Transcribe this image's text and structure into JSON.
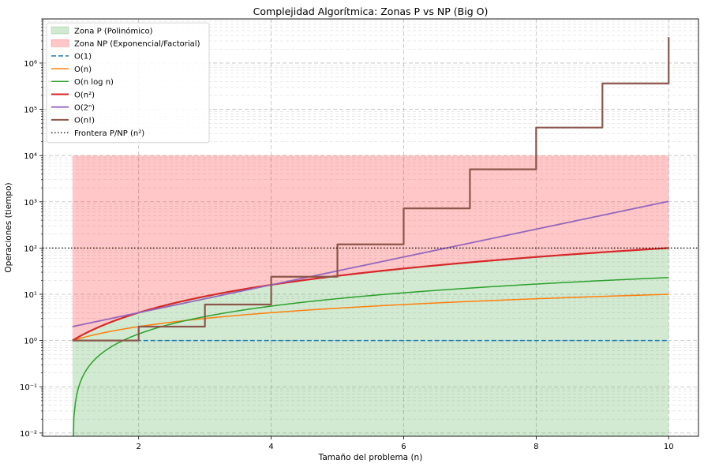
{
  "chart_data": {
    "type": "line",
    "title": "Complejidad Algorítmica: Zonas P vs NP (Big O)",
    "xlabel": "Tamaño del problema (n)",
    "ylabel": "Operaciones (tiempo)",
    "xlim": [
      0.55,
      10.45
    ],
    "ylim": [
      0.0085,
      9000000
    ],
    "yscale": "log",
    "grid": true,
    "legend_position": "top-left",
    "x_ticks": [
      2,
      4,
      6,
      8,
      10
    ],
    "y_ticks": [
      {
        "value": 0.01,
        "label": "10⁻²"
      },
      {
        "value": 0.1,
        "label": "10⁻¹"
      },
      {
        "value": 1,
        "label": "10⁰"
      },
      {
        "value": 10,
        "label": "10¹"
      },
      {
        "value": 100,
        "label": "10²"
      },
      {
        "value": 1000,
        "label": "10³"
      },
      {
        "value": 10000,
        "label": "10⁴"
      },
      {
        "value": 100000,
        "label": "10⁵"
      },
      {
        "value": 1000000,
        "label": "10⁶"
      }
    ],
    "zones": [
      {
        "name": "Zona P (Polinómico)",
        "x_range": [
          1,
          10
        ],
        "y_from": 0.0085,
        "y_to_formula": "n^2",
        "color": "#2ca02c",
        "opacity": 0.22
      },
      {
        "name": "Zona NP (Exponencial/Factorial)",
        "x_range": [
          1,
          10
        ],
        "y_from_formula": "n^2",
        "y_to": 10000,
        "color": "#ff0000",
        "opacity": 0.22
      }
    ],
    "series": [
      {
        "name": "O(1)",
        "formula": "1",
        "color": "#1f77b4",
        "style": "dashed",
        "width": 1.5,
        "x": [
          1,
          2,
          3,
          4,
          5,
          6,
          7,
          8,
          9,
          10
        ],
        "values": [
          1,
          1,
          1,
          1,
          1,
          1,
          1,
          1,
          1,
          1
        ]
      },
      {
        "name": "O(n)",
        "formula": "n",
        "color": "#ff7f0e",
        "style": "solid",
        "width": 1.5,
        "x": [
          1,
          2,
          3,
          4,
          5,
          6,
          7,
          8,
          9,
          10
        ],
        "values": [
          1,
          2,
          3,
          4,
          5,
          6,
          7,
          8,
          9,
          10
        ]
      },
      {
        "name": "O(n log n)",
        "formula": "nlogn",
        "color": "#2ca02c",
        "style": "solid",
        "width": 1.5,
        "x": [
          1,
          2,
          3,
          4,
          5,
          6,
          7,
          8,
          9,
          10
        ],
        "values": [
          0,
          1.39,
          3.3,
          5.55,
          8.05,
          10.75,
          13.62,
          16.64,
          19.78,
          23.03
        ]
      },
      {
        "name": "O(n²)",
        "formula": "n2",
        "color": "#d62728",
        "style": "solid",
        "width": 2.2,
        "x": [
          1,
          2,
          3,
          4,
          5,
          6,
          7,
          8,
          9,
          10
        ],
        "values": [
          1,
          4,
          9,
          16,
          25,
          36,
          49,
          64,
          81,
          100
        ]
      },
      {
        "name": "O(2ⁿ)",
        "formula": "2n",
        "color": "#9467bd",
        "style": "solid",
        "width": 1.8,
        "x": [
          1,
          2,
          3,
          4,
          5,
          6,
          7,
          8,
          9,
          10
        ],
        "values": [
          2,
          4,
          8,
          16,
          32,
          64,
          128,
          256,
          512,
          1024
        ]
      },
      {
        "name": "O(n!)",
        "formula": "factorial_step",
        "color": "#8c564b",
        "style": "solid",
        "width": 2.2,
        "x": [
          1,
          2,
          3,
          4,
          5,
          6,
          7,
          8,
          9,
          10
        ],
        "values": [
          1,
          2,
          6,
          24,
          120,
          720,
          5040,
          40320,
          362880,
          3628800
        ]
      },
      {
        "name": "Frontera P/NP (n²)",
        "formula": "hline100",
        "color": "#000000",
        "style": "dotted",
        "width": 1.3,
        "x": [
          0.55,
          10.45
        ],
        "values": [
          100,
          100
        ]
      }
    ]
  }
}
